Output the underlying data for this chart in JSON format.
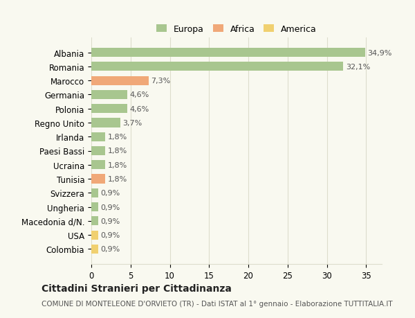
{
  "categories": [
    "Albania",
    "Romania",
    "Marocco",
    "Germania",
    "Polonia",
    "Regno Unito",
    "Irlanda",
    "Paesi Bassi",
    "Ucraina",
    "Tunisia",
    "Svizzera",
    "Ungheria",
    "Macedonia d/N.",
    "USA",
    "Colombia"
  ],
  "values": [
    34.9,
    32.1,
    7.3,
    4.6,
    4.6,
    3.7,
    1.8,
    1.8,
    1.8,
    1.8,
    0.9,
    0.9,
    0.9,
    0.9,
    0.9
  ],
  "labels": [
    "34,9%",
    "32,1%",
    "7,3%",
    "4,6%",
    "4,6%",
    "3,7%",
    "1,8%",
    "1,8%",
    "1,8%",
    "1,8%",
    "0,9%",
    "0,9%",
    "0,9%",
    "0,9%",
    "0,9%"
  ],
  "continents": [
    "Europa",
    "Europa",
    "Africa",
    "Europa",
    "Europa",
    "Europa",
    "Europa",
    "Europa",
    "Europa",
    "Africa",
    "Europa",
    "Europa",
    "Europa",
    "America",
    "America"
  ],
  "colors": {
    "Europa": "#a8c68f",
    "Africa": "#f0a878",
    "America": "#f0d070"
  },
  "legend": {
    "Europa": "#a8c68f",
    "Africa": "#f0a878",
    "America": "#f0d070"
  },
  "title": "Cittadini Stranieri per Cittadinanza",
  "subtitle": "COMUNE DI MONTELEONE D'ORVIETO (TR) - Dati ISTAT al 1° gennaio - Elaborazione TUTTITALIA.IT",
  "xlim": [
    0,
    37
  ],
  "xticks": [
    0,
    5,
    10,
    15,
    20,
    25,
    30,
    35
  ],
  "background_color": "#f9f9f0",
  "grid_color": "#ddddcc"
}
